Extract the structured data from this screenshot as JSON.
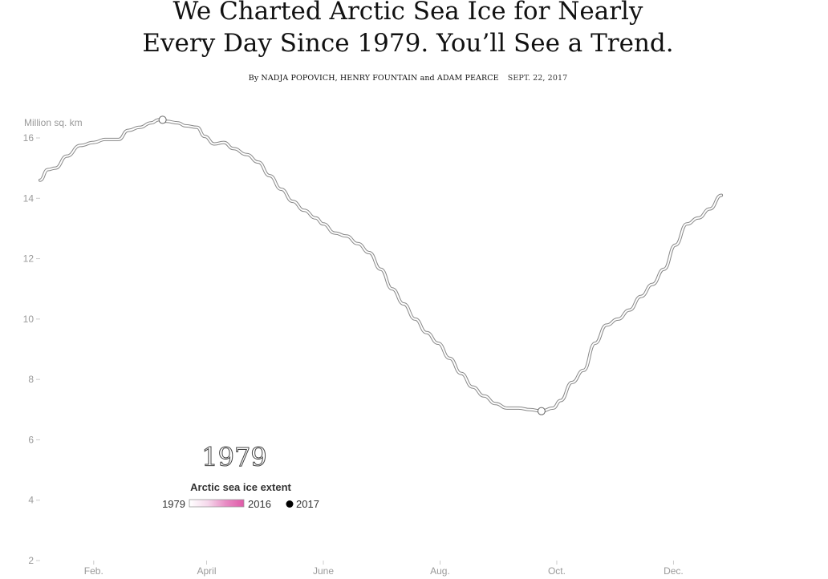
{
  "header": {
    "title_line1": "We Charted Arctic Sea Ice for Nearly",
    "title_line2": "Every Day Since 1979. You’ll See a Trend.",
    "byline_prefix": "By",
    "author1": "NADJA POPOVICH",
    "author2": "HENRY FOUNTAIN",
    "byline_and": "and",
    "author3": "ADAM PEARCE",
    "date": "SEPT. 22, 2017"
  },
  "chart_data": {
    "type": "line",
    "ylabel": "Million sq. km",
    "ylim": [
      2,
      17
    ],
    "yticks": [
      2,
      4,
      6,
      8,
      10,
      12,
      14,
      16
    ],
    "xticks": [
      {
        "label": "Feb.",
        "day": 32
      },
      {
        "label": "April",
        "day": 91
      },
      {
        "label": "June",
        "day": 152
      },
      {
        "label": "Aug.",
        "day": 213
      },
      {
        "label": "Oct.",
        "day": 274
      },
      {
        "label": "Dec.",
        "day": 335
      }
    ],
    "xlim": [
      4,
      365
    ],
    "current_year": "1979",
    "series": [
      {
        "points": [
          [
            4,
            14.6
          ],
          [
            8,
            14.95
          ],
          [
            12,
            15.0
          ],
          [
            18,
            15.4
          ],
          [
            25,
            15.75
          ],
          [
            32,
            15.85
          ],
          [
            38,
            15.95
          ],
          [
            45,
            15.95
          ],
          [
            50,
            16.25
          ],
          [
            56,
            16.35
          ],
          [
            62,
            16.5
          ],
          [
            66,
            16.6
          ],
          [
            70,
            16.55
          ],
          [
            76,
            16.5
          ],
          [
            80,
            16.4
          ],
          [
            86,
            16.35
          ],
          [
            90,
            16.05
          ],
          [
            95,
            15.8
          ],
          [
            100,
            15.85
          ],
          [
            105,
            15.65
          ],
          [
            112,
            15.45
          ],
          [
            118,
            15.2
          ],
          [
            124,
            14.75
          ],
          [
            130,
            14.3
          ],
          [
            136,
            13.9
          ],
          [
            142,
            13.6
          ],
          [
            148,
            13.35
          ],
          [
            152,
            13.15
          ],
          [
            158,
            12.85
          ],
          [
            164,
            12.75
          ],
          [
            170,
            12.5
          ],
          [
            176,
            12.2
          ],
          [
            182,
            11.65
          ],
          [
            188,
            11.0
          ],
          [
            194,
            10.5
          ],
          [
            200,
            10.0
          ],
          [
            206,
            9.55
          ],
          [
            212,
            9.2
          ],
          [
            218,
            8.7
          ],
          [
            224,
            8.2
          ],
          [
            230,
            7.75
          ],
          [
            236,
            7.45
          ],
          [
            242,
            7.2
          ],
          [
            248,
            7.05
          ],
          [
            254,
            7.05
          ],
          [
            260,
            7.0
          ],
          [
            266,
            6.95
          ],
          [
            272,
            7.05
          ],
          [
            276,
            7.3
          ],
          [
            282,
            7.9
          ],
          [
            288,
            8.3
          ],
          [
            294,
            9.2
          ],
          [
            300,
            9.8
          ],
          [
            306,
            10.0
          ],
          [
            312,
            10.3
          ],
          [
            318,
            10.75
          ],
          [
            324,
            11.15
          ],
          [
            330,
            11.65
          ],
          [
            336,
            12.45
          ],
          [
            342,
            13.15
          ],
          [
            348,
            13.35
          ],
          [
            354,
            13.65
          ],
          [
            360,
            14.1
          ]
        ]
      }
    ],
    "markers": [
      {
        "day": 68,
        "value": 16.6
      },
      {
        "day": 266,
        "value": 6.95
      }
    ],
    "legend": {
      "title": "Arctic sea ice extent",
      "start_label": "1979",
      "end_label": "2016",
      "dot_label": "2017",
      "gradient_colors": [
        "#ffffff",
        "#f6d9ec",
        "#e88cc4",
        "#e05aa8"
      ]
    },
    "colors": {
      "line_outer": "#888888",
      "line_inner": "#ffffff",
      "tick": "#cccccc",
      "dot_2017": "#000000"
    }
  }
}
